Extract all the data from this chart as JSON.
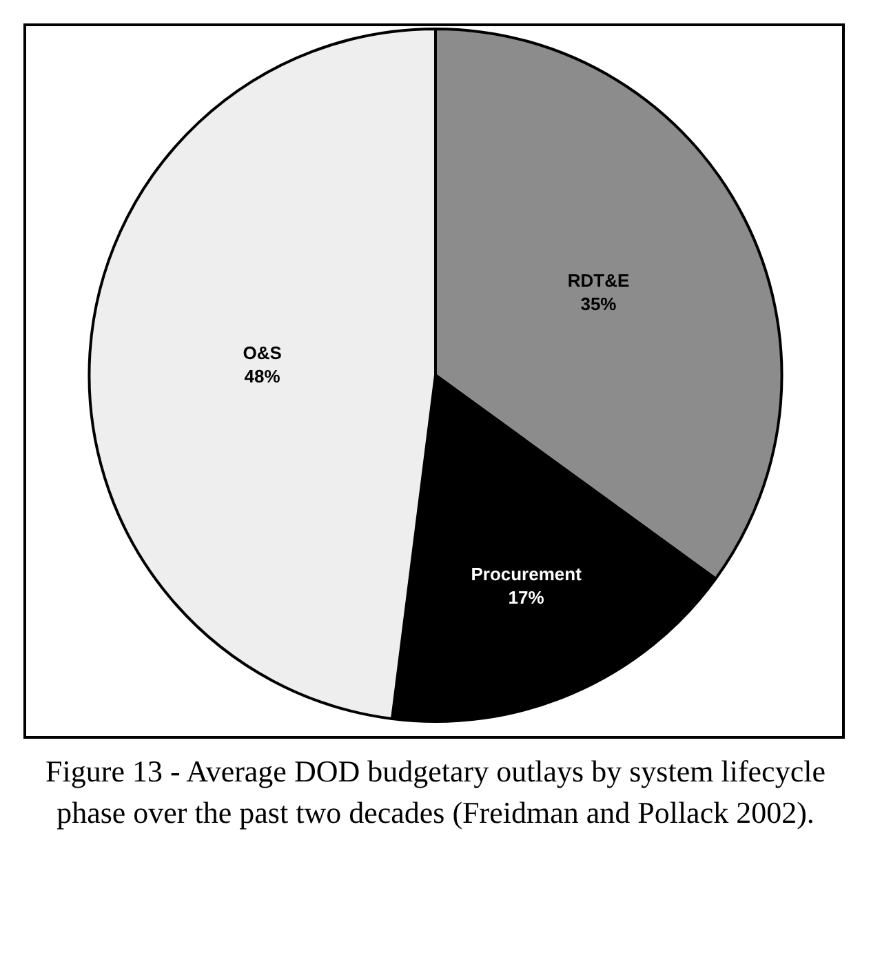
{
  "chart_data": {
    "type": "pie",
    "categories": [
      "RDT&E",
      "Procurement",
      "O&S"
    ],
    "values": [
      35,
      17,
      48
    ],
    "value_labels": [
      "35%",
      "17%",
      "48%"
    ],
    "colors": [
      "#8c8c8c",
      "#000000",
      "#eeeeee"
    ],
    "legend": false,
    "annotations": [
      "Figure 13 - Average DOD budgetary outlays by system lifecycle phase over the past two decades (Freidman and Pollack 2002)."
    ]
  }
}
